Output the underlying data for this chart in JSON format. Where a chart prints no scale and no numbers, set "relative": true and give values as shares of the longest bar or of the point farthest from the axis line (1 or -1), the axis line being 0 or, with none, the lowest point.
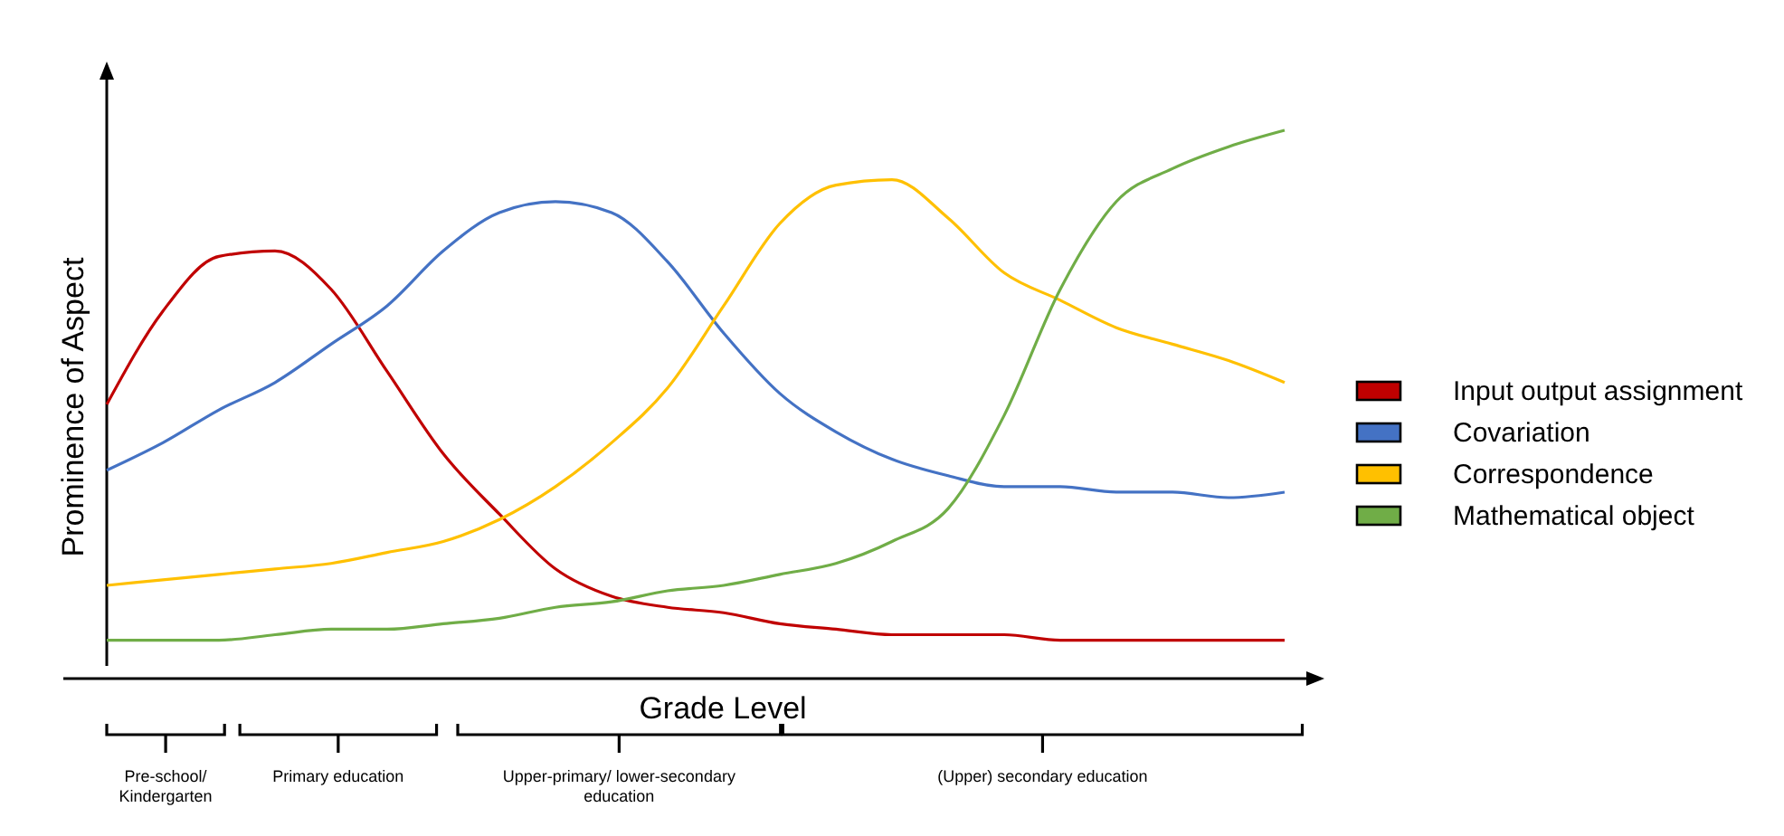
{
  "chart_data": {
    "type": "line",
    "relative": true,
    "xlabel": "Grade Level",
    "ylabel": "Prominence of Aspect",
    "legend": "right",
    "marker": "none",
    "line_style": "solid",
    "grid": false,
    "categories": [
      null,
      null,
      null,
      null,
      null,
      null,
      null,
      null,
      null,
      null,
      null,
      null,
      null,
      null,
      null,
      null,
      null,
      null,
      null,
      null,
      null,
      null
    ],
    "series": [
      {
        "name": "Input output assignment",
        "color": "#c00000",
        "values": [
          0.5,
          0.67,
          0.77,
          0.78,
          0.71,
          0.56,
          0.41,
          0.3,
          0.2,
          0.15,
          0.13,
          0.12,
          0.1,
          0.09,
          0.08,
          0.08,
          0.08,
          0.07,
          0.07,
          0.07,
          0.07,
          0.07
        ]
      },
      {
        "name": "Covariation",
        "color": "#4472c4",
        "values": [
          0.38,
          0.43,
          0.49,
          0.54,
          0.61,
          0.68,
          0.78,
          0.85,
          0.87,
          0.85,
          0.76,
          0.63,
          0.52,
          0.45,
          0.4,
          0.37,
          0.35,
          0.35,
          0.34,
          0.34,
          0.33,
          0.34
        ]
      },
      {
        "name": "Correspondence",
        "color": "#ffc000",
        "values": [
          0.17,
          0.18,
          0.19,
          0.2,
          0.21,
          0.23,
          0.25,
          0.29,
          0.35,
          0.43,
          0.53,
          0.68,
          0.83,
          0.9,
          0.91,
          0.84,
          0.74,
          0.69,
          0.64,
          0.61,
          0.58,
          0.54
        ]
      },
      {
        "name": "Mathematical object",
        "color": "#70ad47",
        "values": [
          0.07,
          0.07,
          0.07,
          0.08,
          0.09,
          0.09,
          0.1,
          0.11,
          0.13,
          0.14,
          0.16,
          0.17,
          0.19,
          0.21,
          0.25,
          0.31,
          0.48,
          0.71,
          0.87,
          0.93,
          0.97,
          1
        ]
      }
    ],
    "annotations": [
      "Pre-school/ Kindergarten",
      "Primary education",
      "Upper-primary/ lower-secondary education",
      "(Upper) secondary education"
    ]
  }
}
